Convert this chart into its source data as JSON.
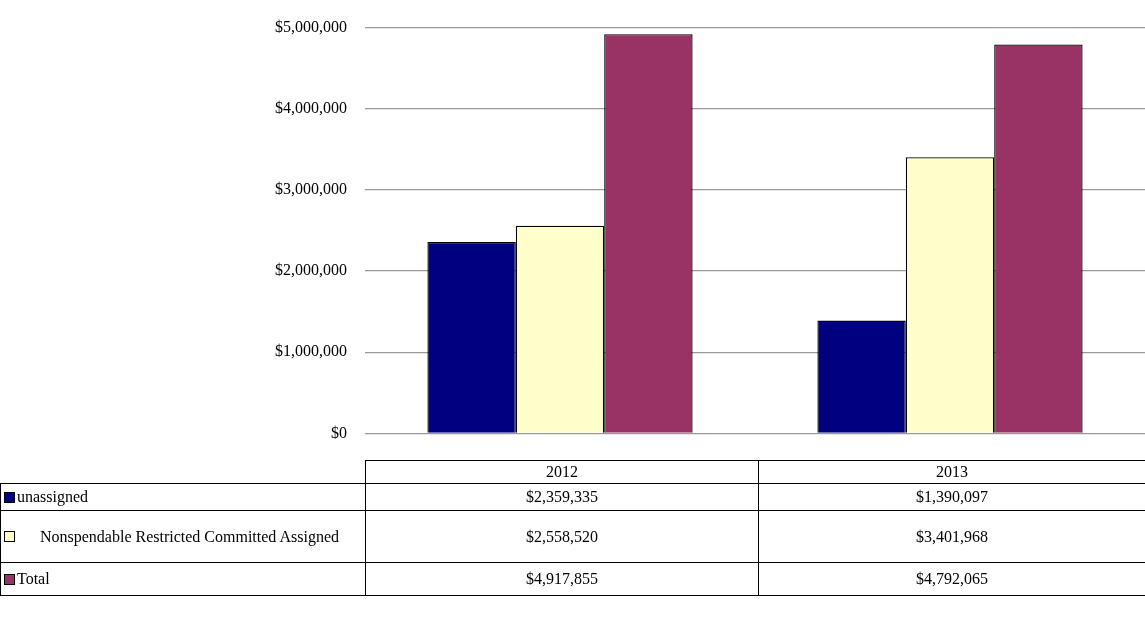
{
  "chart_data": {
    "type": "bar",
    "categories": [
      "2012",
      "2013"
    ],
    "series": [
      {
        "name": "unassigned",
        "color": "#000080",
        "values": [
          2359335,
          1390097
        ],
        "value_labels": [
          "$2,359,335",
          "$1,390,097"
        ]
      },
      {
        "name": "Nonspendable Restricted Committed Assigned",
        "color": "#ffffcc",
        "values": [
          2558520,
          3401968
        ],
        "value_labels": [
          "$2,558,520",
          "$3,401,968"
        ]
      },
      {
        "name": "Total",
        "color": "#993366",
        "values": [
          4917855,
          4792065
        ],
        "value_labels": [
          "$4,917,855",
          "$4,792,065"
        ]
      }
    ],
    "ylim": [
      0,
      5000000
    ],
    "yticks": [
      {
        "value": 0,
        "label": "$0"
      },
      {
        "value": 1000000,
        "label": "$1,000,000"
      },
      {
        "value": 2000000,
        "label": "$2,000,000"
      },
      {
        "value": 3000000,
        "label": "$3,000,000"
      },
      {
        "value": 4000000,
        "label": "$4,000,000"
      },
      {
        "value": 5000000,
        "label": "$5,000,000"
      }
    ],
    "grid": "y",
    "legend": "bottom"
  }
}
